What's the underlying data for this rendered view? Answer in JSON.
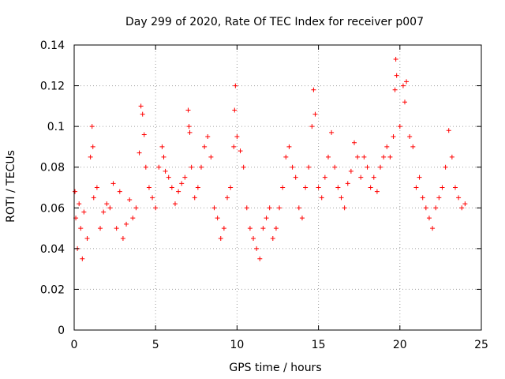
{
  "chart_data": {
    "type": "scatter",
    "title": "Day 299 of 2020, Rate Of TEC Index for receiver p007",
    "xlabel": "GPS time / hours",
    "ylabel": "ROTI / TECUs",
    "xlim": [
      0,
      25
    ],
    "ylim": [
      0,
      0.14
    ],
    "x_ticks": [
      "0",
      "5",
      "10",
      "15",
      "20",
      "25"
    ],
    "y_ticks": [
      "0",
      "0.02",
      "0.04",
      "0.06",
      "0.08",
      "0.1",
      "0.12",
      "0.14"
    ],
    "grid": true,
    "legend": "none",
    "marker": "plus",
    "color": "#ff0000",
    "series": [
      {
        "x": [
          0.05,
          0.1,
          0.2,
          0.3,
          0.4,
          0.5,
          0.6,
          0.8,
          1.0,
          1.1,
          1.15,
          1.2,
          1.4,
          1.6,
          1.8,
          2.0,
          2.2,
          2.4,
          2.6,
          2.8,
          3.0,
          3.2,
          3.4,
          3.6,
          3.8,
          4.0,
          4.1,
          4.2,
          4.3,
          4.4,
          4.6,
          4.8,
          5.0,
          5.2,
          5.4,
          5.5,
          5.6,
          5.8,
          6.0,
          6.2,
          6.4,
          6.6,
          6.8,
          7.0,
          7.05,
          7.1,
          7.2,
          7.4,
          7.6,
          7.8,
          8.0,
          8.2,
          8.4,
          8.6,
          8.8,
          9.0,
          9.2,
          9.4,
          9.6,
          9.8,
          9.85,
          9.9,
          10.0,
          10.2,
          10.4,
          10.6,
          10.8,
          11.0,
          11.2,
          11.4,
          11.6,
          11.8,
          12.0,
          12.2,
          12.4,
          12.6,
          12.8,
          13.0,
          13.2,
          13.4,
          13.6,
          13.8,
          14.0,
          14.2,
          14.4,
          14.6,
          14.7,
          14.8,
          15.0,
          15.2,
          15.4,
          15.6,
          15.8,
          16.0,
          16.2,
          16.4,
          16.6,
          16.8,
          17.0,
          17.2,
          17.4,
          17.6,
          17.8,
          18.0,
          18.2,
          18.4,
          18.6,
          18.8,
          19.0,
          19.2,
          19.4,
          19.6,
          19.7,
          19.75,
          19.8,
          20.0,
          20.2,
          20.3,
          20.4,
          20.6,
          20.8,
          21.0,
          21.2,
          21.4,
          21.6,
          21.8,
          22.0,
          22.2,
          22.4,
          22.6,
          22.8,
          23.0,
          23.2,
          23.4,
          23.6,
          23.8,
          24.0
        ],
        "y": [
          0.068,
          0.055,
          0.04,
          0.062,
          0.05,
          0.035,
          0.058,
          0.045,
          0.085,
          0.1,
          0.09,
          0.065,
          0.07,
          0.05,
          0.058,
          0.062,
          0.06,
          0.072,
          0.05,
          0.068,
          0.045,
          0.052,
          0.064,
          0.055,
          0.06,
          0.087,
          0.11,
          0.106,
          0.096,
          0.08,
          0.07,
          0.065,
          0.06,
          0.08,
          0.09,
          0.085,
          0.078,
          0.075,
          0.07,
          0.062,
          0.068,
          0.072,
          0.075,
          0.108,
          0.1,
          0.097,
          0.08,
          0.065,
          0.07,
          0.08,
          0.09,
          0.095,
          0.085,
          0.06,
          0.055,
          0.045,
          0.05,
          0.065,
          0.07,
          0.09,
          0.108,
          0.12,
          0.095,
          0.088,
          0.08,
          0.06,
          0.05,
          0.045,
          0.04,
          0.035,
          0.05,
          0.055,
          0.06,
          0.045,
          0.05,
          0.06,
          0.07,
          0.085,
          0.09,
          0.08,
          0.075,
          0.06,
          0.055,
          0.07,
          0.08,
          0.1,
          0.118,
          0.106,
          0.07,
          0.065,
          0.075,
          0.085,
          0.097,
          0.08,
          0.07,
          0.065,
          0.06,
          0.072,
          0.078,
          0.092,
          0.085,
          0.075,
          0.085,
          0.08,
          0.07,
          0.075,
          0.068,
          0.08,
          0.085,
          0.09,
          0.085,
          0.095,
          0.118,
          0.133,
          0.125,
          0.1,
          0.12,
          0.112,
          0.122,
          0.095,
          0.09,
          0.07,
          0.075,
          0.065,
          0.06,
          0.055,
          0.05,
          0.06,
          0.065,
          0.07,
          0.08,
          0.098,
          0.085,
          0.07,
          0.065,
          0.06,
          0.062
        ]
      }
    ]
  }
}
